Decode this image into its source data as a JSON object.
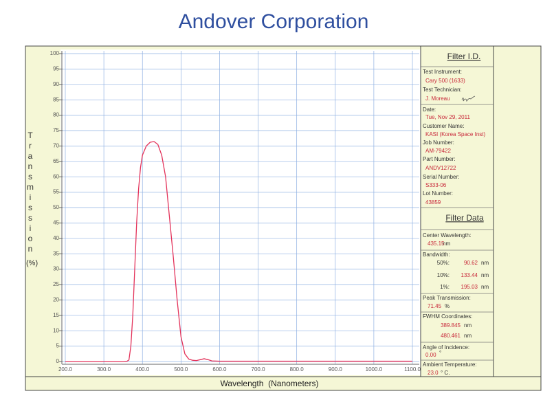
{
  "header": {
    "title": "Andover Corporation"
  },
  "chart_data": {
    "type": "line",
    "x_label": "Wavelength  (Nanometers)",
    "y_label": "Transmission",
    "y_unit": "(%)",
    "x": [
      200,
      300,
      350,
      360,
      365,
      370,
      375,
      380,
      385,
      390,
      395,
      400,
      410,
      420,
      430,
      440,
      450,
      460,
      470,
      480,
      490,
      500,
      510,
      520,
      530,
      540,
      550,
      560,
      570,
      580,
      600,
      700,
      800,
      900,
      1000,
      1100
    ],
    "series": [
      {
        "color": "#e3325a",
        "values": [
          0,
          0,
          0,
          0.1,
          0.5,
          5,
          15,
          30,
          45,
          56,
          63,
          67,
          70,
          71.2,
          71.45,
          70.5,
          67,
          60,
          47,
          34,
          20,
          8,
          2.5,
          0.8,
          0.4,
          0.3,
          0.6,
          0.9,
          0.6,
          0.2,
          0.1,
          0.1,
          0.1,
          0.1,
          0.1,
          0.1
        ]
      }
    ],
    "xlim": [
      200,
      1100
    ],
    "ylim": [
      0,
      100
    ],
    "xticks": [
      {
        "value": 200,
        "label": "200.0"
      },
      {
        "value": 300,
        "label": "300.0"
      },
      {
        "value": 400,
        "label": "400.0"
      },
      {
        "value": 500,
        "label": "500.0"
      },
      {
        "value": 600,
        "label": "600.0"
      },
      {
        "value": 700,
        "label": "700.0"
      },
      {
        "value": 800,
        "label": "800.0"
      },
      {
        "value": 900,
        "label": "900.0"
      },
      {
        "value": 1000,
        "label": "1000.0"
      },
      {
        "value": 1100,
        "label": "1100.0"
      }
    ],
    "yticks": [
      0,
      5,
      10,
      15,
      20,
      25,
      30,
      35,
      40,
      45,
      50,
      55,
      60,
      65,
      70,
      75,
      80,
      85,
      90,
      95,
      100
    ],
    "grid": true
  },
  "filter_id": {
    "heading": "Filter I.D.",
    "fields": [
      {
        "label": "Test Instrument:",
        "value": "Cary 500 (1633)"
      },
      {
        "label": "Test Technician:",
        "value": "J. Moreau"
      },
      {
        "label": "Date:",
        "value": "Tue, Nov 29, 2011"
      },
      {
        "label": "Customer Name:",
        "value": "KASI  (Korea Space Inst)"
      },
      {
        "label": "Job Number:",
        "value": "AM-79422"
      },
      {
        "label": "Part Number:",
        "value": "ANDV12722"
      },
      {
        "label": "Serial Number:",
        "value": "S333-06"
      },
      {
        "label": "Lot Number:",
        "value": "43859"
      }
    ]
  },
  "filter_data": {
    "heading": "Filter Data",
    "center_wavelength": {
      "label": "Center Wavelength:",
      "value": "435.15",
      "unit": "nm"
    },
    "bandwidth": {
      "label": "Bandwidth:",
      "rows": [
        {
          "level": "50%:",
          "value": "90.62",
          "unit": "nm"
        },
        {
          "level": "10%:",
          "value": "133.44",
          "unit": "nm"
        },
        {
          "level": "1%:",
          "value": "195.03",
          "unit": "nm"
        }
      ]
    },
    "peak_transmission": {
      "label": "Peak Transmission:",
      "value": "71.45",
      "unit": "%"
    },
    "fwhm": {
      "label": "FWHM Coordinates:",
      "rows": [
        {
          "value": "389.845",
          "unit": "nm"
        },
        {
          "value": "480.461",
          "unit": "nm"
        }
      ]
    },
    "angle": {
      "label": "Angle of Incidence:",
      "value": "0.00",
      "unit": "°"
    },
    "temperature": {
      "label": "Ambient Temperature:",
      "value": "23.0",
      "unit": "° C."
    }
  }
}
